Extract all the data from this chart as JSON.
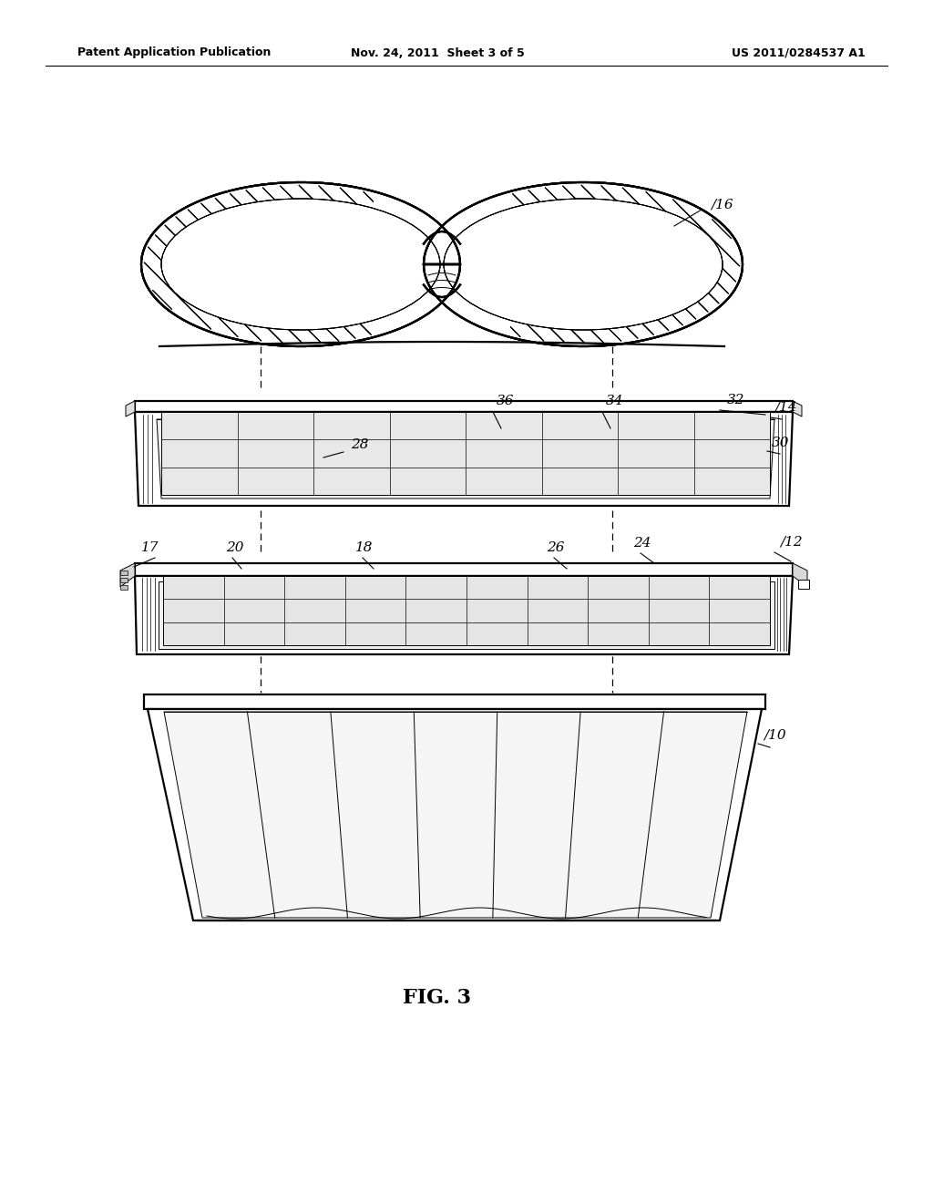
{
  "bg_color": "#ffffff",
  "text_color": "#000000",
  "line_color": "#000000",
  "header_left": "Patent Application Publication",
  "header_center": "Nov. 24, 2011  Sheet 3 of 5",
  "header_right": "US 2011/0284537 A1",
  "figure_label": "FIG. 3",
  "lw_main": 1.6,
  "lw_med": 1.1,
  "lw_thin": 0.7,
  "lw_hair": 0.5
}
